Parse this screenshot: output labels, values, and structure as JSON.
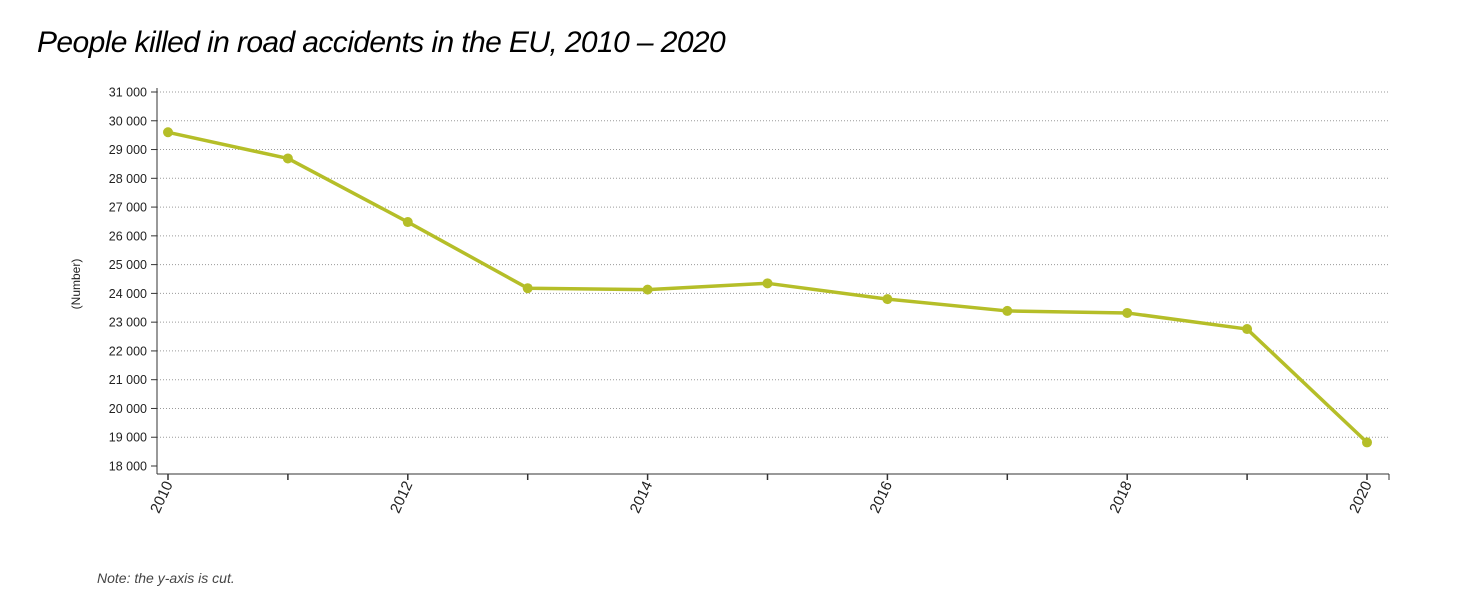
{
  "chart_data": {
    "type": "line",
    "title": "People killed in road accidents in the EU, 2010 – 2020",
    "ylabel": "(Number)",
    "xlabel": "",
    "note": "Note: the y-axis is cut.",
    "x": [
      2010,
      2011,
      2012,
      2013,
      2014,
      2015,
      2016,
      2017,
      2018,
      2019,
      2020
    ],
    "series": [
      {
        "values": [
          29600,
          28690,
          26480,
          24180,
          24130,
          24350,
          23800,
          23390,
          23320,
          22760,
          18820
        ],
        "color": "#b5be28"
      }
    ],
    "ylim": [
      18000,
      31000
    ],
    "xlim": [
      2010,
      2020
    ],
    "y_ticks": [
      18000,
      19000,
      20000,
      21000,
      22000,
      23000,
      24000,
      25000,
      26000,
      27000,
      28000,
      29000,
      30000,
      31000
    ],
    "y_tick_labels": [
      "18 000",
      "19 000",
      "20 000",
      "21 000",
      "22 000",
      "23 000",
      "24 000",
      "25 000",
      "26 000",
      "27 000",
      "28 000",
      "29 000",
      "30 000",
      "31 000"
    ],
    "x_tick_labels": [
      "2010",
      "2012",
      "2014",
      "2016",
      "2018",
      "2020"
    ],
    "grid": "horizontal dotted",
    "legend": "none"
  }
}
